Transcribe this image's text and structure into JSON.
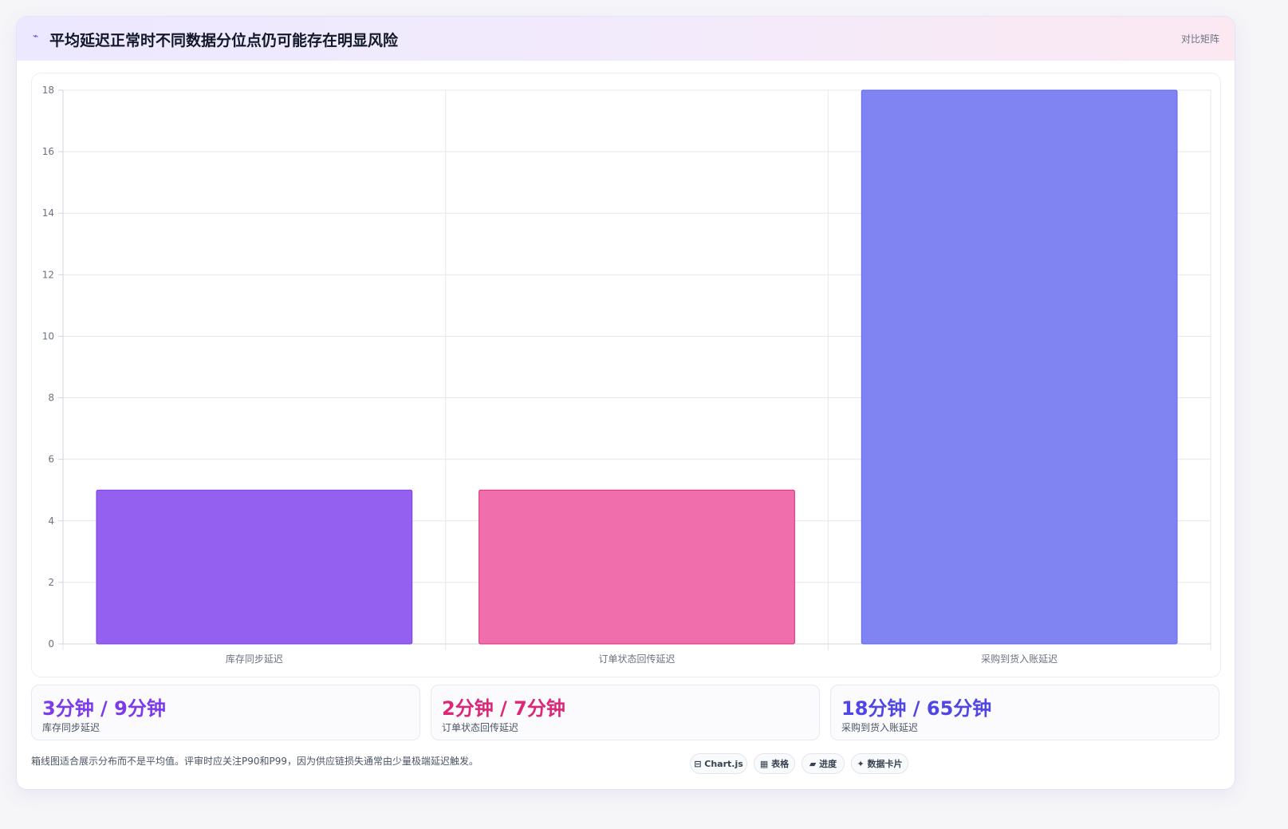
{
  "header": {
    "icon": "sparkline-icon",
    "title": "平均延迟正常时不同数据分位点仍可能存在明显风险",
    "right_link": "对比矩阵"
  },
  "chart_data": {
    "type": "bar",
    "categories": [
      "库存同步延迟",
      "订单状态回传延迟",
      "采购到货入账延迟"
    ],
    "values": [
      5,
      5,
      18
    ],
    "colors": [
      "#9360f0",
      "#f06eab",
      "#8084f3"
    ],
    "border_colors": [
      "#7c3aed",
      "#db2777",
      "#6366f1"
    ],
    "ylim": [
      0,
      18
    ],
    "ytick_step": 2,
    "grid": true,
    "legend": false
  },
  "stats": [
    {
      "value": "3分钟 / 9分钟",
      "label": "库存同步延迟",
      "color": "#7c3aed"
    },
    {
      "value": "2分钟 / 7分钟",
      "label": "订单状态回传延迟",
      "color": "#db2777"
    },
    {
      "value": "18分钟 / 65分钟",
      "label": "采购到货入账延迟",
      "color": "#4f46e5"
    }
  ],
  "footnote": "箱线图适合展示分布而不是平均值。评审时应关注P90和P99，因为供应链损失通常由少量极端延迟触发。",
  "chips": [
    {
      "icon": "chart-icon",
      "label": "Chart.js",
      "glyph": "⊟"
    },
    {
      "icon": "table-icon",
      "label": "表格",
      "glyph": "▦"
    },
    {
      "icon": "progress-icon",
      "label": "进度",
      "glyph": "▰"
    },
    {
      "icon": "sparkle-icon",
      "label": "数据卡片",
      "glyph": "✦"
    }
  ]
}
